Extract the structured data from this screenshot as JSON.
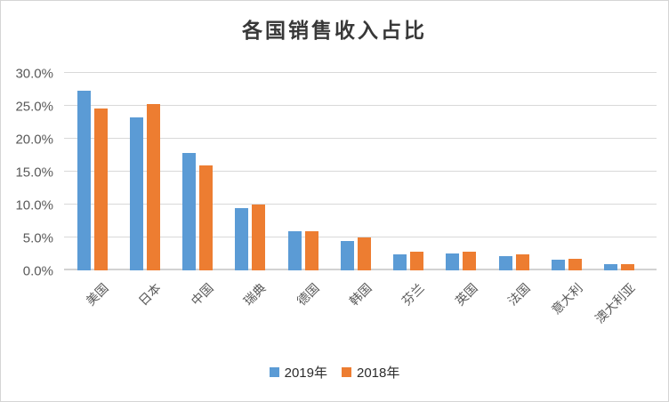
{
  "window": {
    "background_color": "#ffffff",
    "border_color": "#d5d5d5"
  },
  "chart_data": {
    "type": "bar",
    "title": "各国销售收入占比",
    "categories": [
      "美国",
      "日本",
      "中国",
      "瑞典",
      "德国",
      "韩国",
      "芬兰",
      "英国",
      "法国",
      "意大利",
      "澳大利亚"
    ],
    "series": [
      {
        "name": "2019年",
        "color": "#5B9BD5",
        "values": [
          27.3,
          23.2,
          17.8,
          9.5,
          5.9,
          4.5,
          2.4,
          2.6,
          2.2,
          1.6,
          0.9
        ]
      },
      {
        "name": "2018年",
        "color": "#ED7D31",
        "values": [
          24.6,
          25.3,
          16.0,
          10.0,
          6.0,
          5.0,
          2.8,
          2.9,
          2.5,
          1.8,
          0.9
        ]
      }
    ],
    "xlabel": "",
    "ylabel": "",
    "y_axis": {
      "min": 0,
      "max": 30,
      "step": 5,
      "tick_labels": [
        "0.0%",
        "5.0%",
        "10.0%",
        "15.0%",
        "20.0%",
        "25.0%",
        "30.0%"
      ]
    },
    "grid": true,
    "legend_position": "bottom",
    "styles": {
      "gridline_color": "#D9D9D9",
      "axis_label_color": "#595959",
      "title_color": "#383838"
    }
  }
}
